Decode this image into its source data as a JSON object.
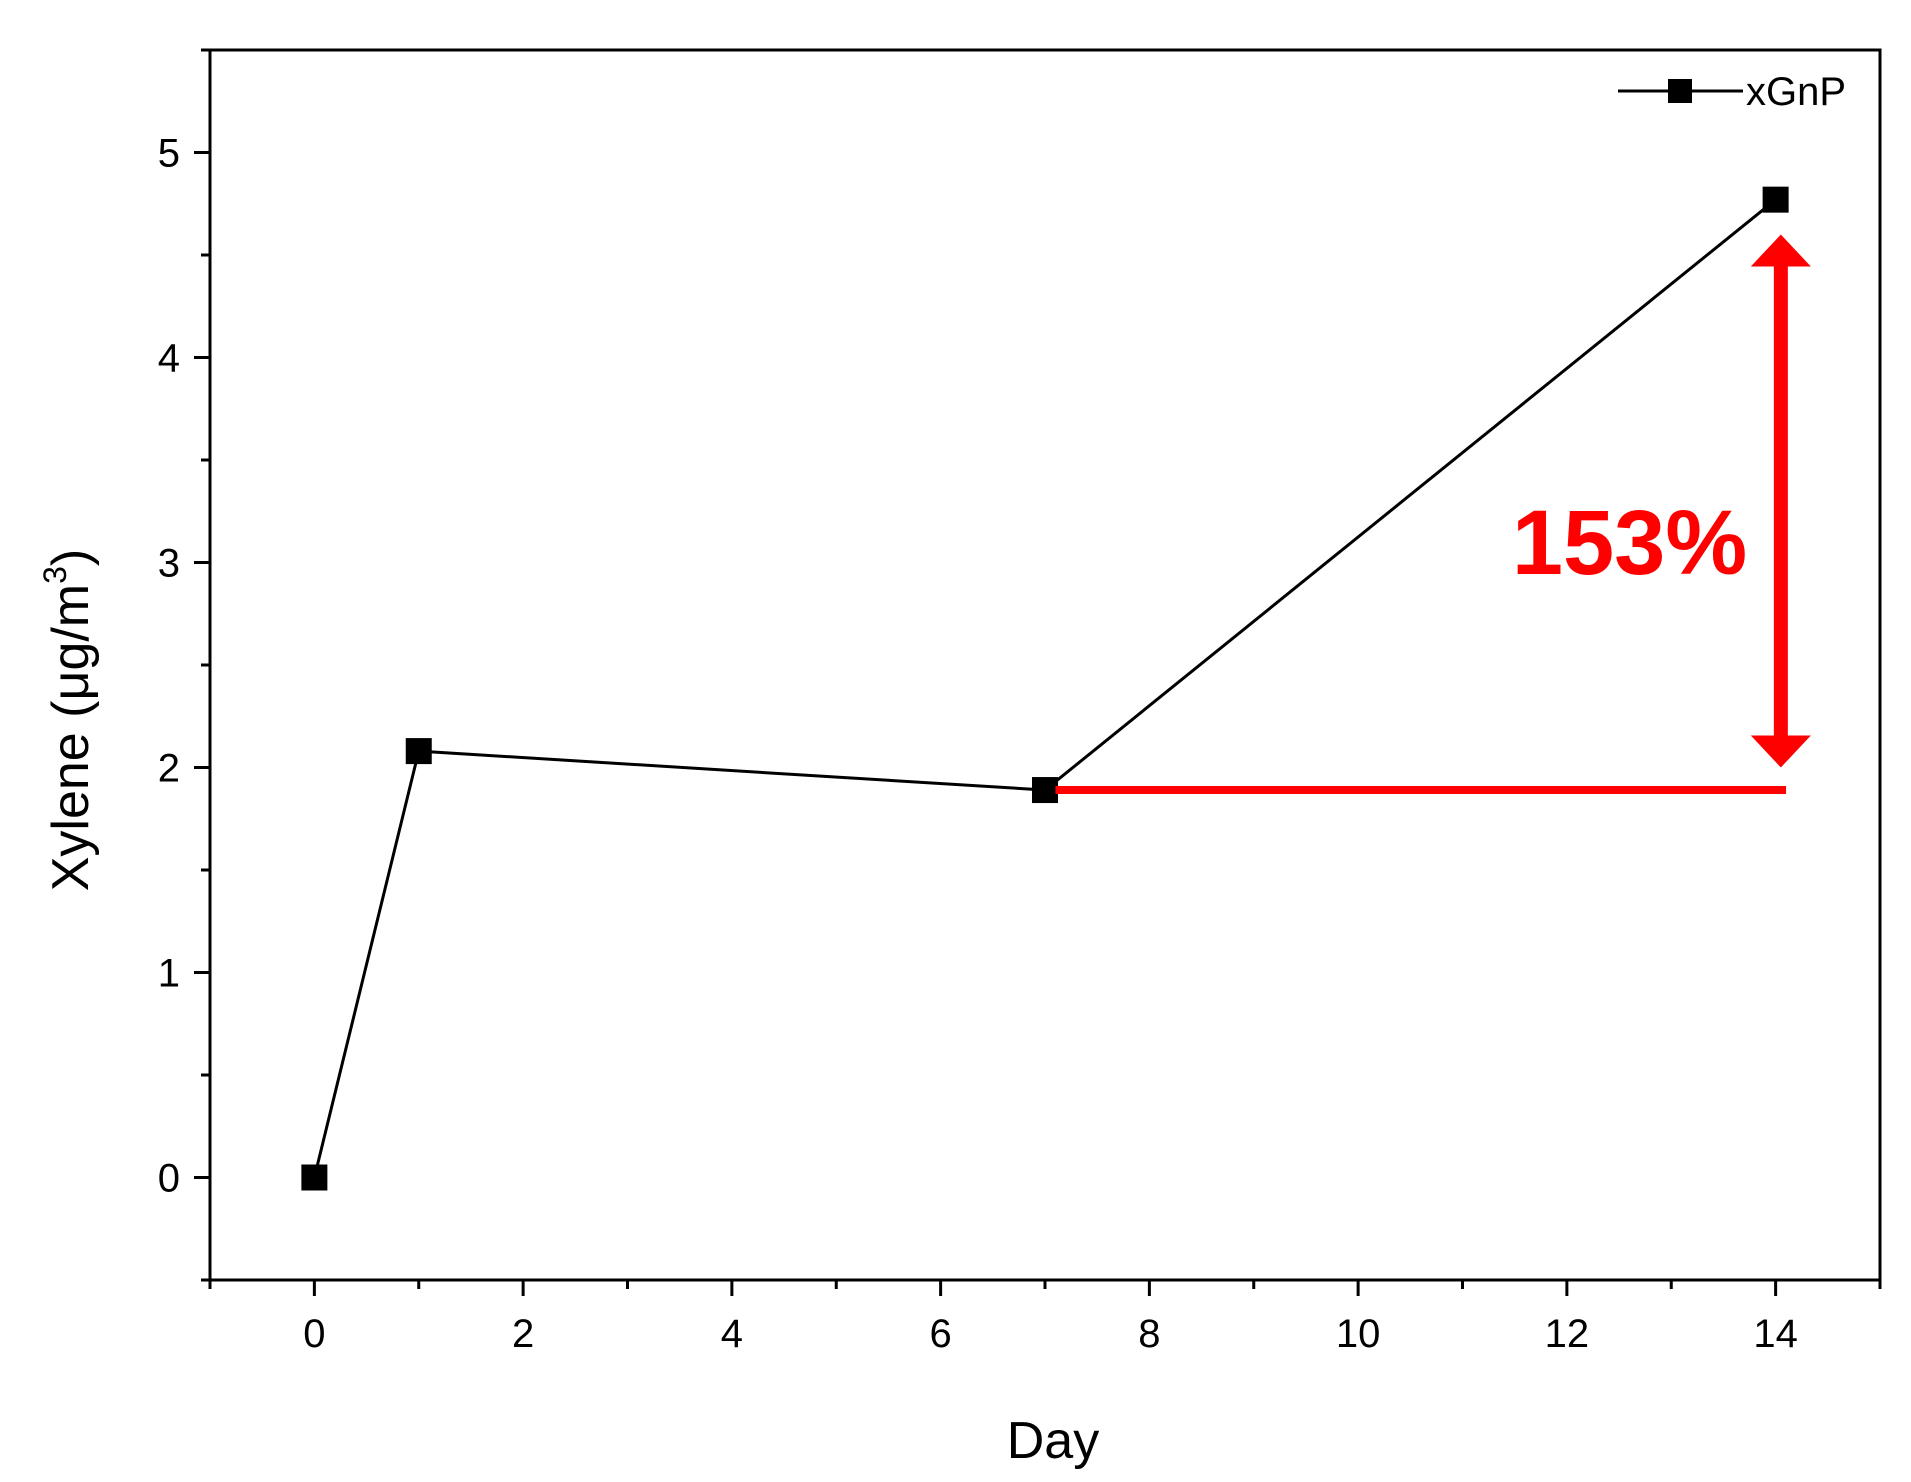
{
  "chart_data": {
    "type": "line",
    "xlabel": "Day",
    "ylabel_main": "Xylene (",
    "ylabel_unit": "μg/m",
    "ylabel_sup": "3",
    "ylabel_close": ")",
    "xlim": [
      -1,
      15
    ],
    "ylim": [
      -0.5,
      5.5
    ],
    "x_ticks": [
      0,
      2,
      4,
      6,
      8,
      10,
      12,
      14
    ],
    "x_tick_labels": [
      "0",
      "2",
      "4",
      "6",
      "8",
      "10",
      "12",
      "14"
    ],
    "y_ticks": [
      0,
      1,
      2,
      3,
      4,
      5
    ],
    "y_tick_labels": [
      "0",
      "1",
      "2",
      "3",
      "4",
      "5"
    ],
    "grid": false,
    "legend_position": "top-right",
    "series": [
      {
        "name": "xGnP",
        "marker": "square",
        "color": "#000000",
        "x": [
          0,
          1,
          7,
          14
        ],
        "y": [
          0,
          2.08,
          1.89,
          4.77
        ]
      }
    ],
    "annotation": {
      "text": "153%",
      "color": "#ff0000",
      "baseline_y": 1.89,
      "baseline_x": [
        7.1,
        14.1
      ],
      "arrow_x": 14.05,
      "arrow_y": [
        2.0,
        4.6
      ],
      "text_x": 12.6,
      "text_y": 3.1
    }
  }
}
